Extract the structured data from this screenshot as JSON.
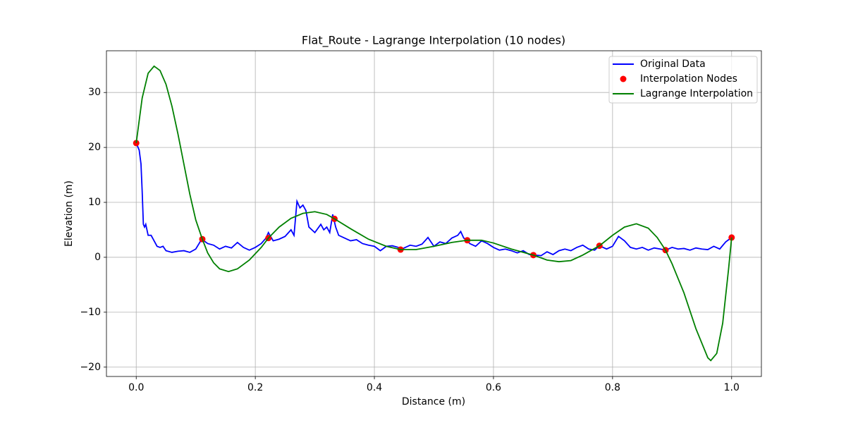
{
  "chart_data": {
    "type": "line",
    "title": "Flat_Route - Lagrange Interpolation (10 nodes)",
    "xlabel": "Distance (m)",
    "ylabel": "Elevation (m)",
    "xlim": [
      -0.05,
      1.05
    ],
    "ylim": [
      -21.7,
      37.6
    ],
    "xticks": [
      {
        "value": 0,
        "label": "0.0"
      },
      {
        "value": 0.2,
        "label": "0.2"
      },
      {
        "value": 0.4,
        "label": "0.4"
      },
      {
        "value": 0.6,
        "label": "0.6"
      },
      {
        "value": 0.8,
        "label": "0.8"
      },
      {
        "value": 1,
        "label": "1.0"
      }
    ],
    "yticks": [
      {
        "value": -20,
        "label": "−20"
      },
      {
        "value": -10,
        "label": "−10"
      },
      0,
      10,
      20,
      30
    ],
    "grid": true,
    "legend": "upper right",
    "series": [
      {
        "name": "Original Data",
        "type": "line",
        "color": "#0000ff",
        "x": [
          0,
          0.005,
          0.008,
          0.01,
          0.012,
          0.014,
          0.016,
          0.018,
          0.02,
          0.025,
          0.03,
          0.035,
          0.04,
          0.045,
          0.05,
          0.06,
          0.07,
          0.08,
          0.09,
          0.1,
          0.11,
          0.12,
          0.13,
          0.14,
          0.15,
          0.16,
          0.17,
          0.18,
          0.19,
          0.2,
          0.21,
          0.218,
          0.222,
          0.23,
          0.24,
          0.25,
          0.26,
          0.265,
          0.27,
          0.275,
          0.28,
          0.285,
          0.29,
          0.3,
          0.31,
          0.315,
          0.32,
          0.325,
          0.33,
          0.335,
          0.34,
          0.35,
          0.36,
          0.37,
          0.38,
          0.39,
          0.4,
          0.41,
          0.42,
          0.43,
          0.44,
          0.444,
          0.46,
          0.47,
          0.48,
          0.49,
          0.5,
          0.51,
          0.52,
          0.53,
          0.54,
          0.545,
          0.55,
          0.556,
          0.56,
          0.57,
          0.58,
          0.59,
          0.6,
          0.61,
          0.62,
          0.63,
          0.64,
          0.65,
          0.66,
          0.667,
          0.68,
          0.69,
          0.7,
          0.71,
          0.72,
          0.73,
          0.74,
          0.75,
          0.76,
          0.77,
          0.778,
          0.79,
          0.8,
          0.81,
          0.82,
          0.83,
          0.84,
          0.85,
          0.86,
          0.87,
          0.88,
          0.889,
          0.9,
          0.91,
          0.92,
          0.93,
          0.94,
          0.95,
          0.96,
          0.97,
          0.98,
          0.99,
          1.0
        ],
        "values": [
          20.8,
          19.5,
          17,
          12,
          6,
          5.5,
          6,
          5,
          4,
          4,
          3,
          2,
          1.8,
          2,
          1.2,
          0.9,
          1.1,
          1.2,
          0.9,
          1.5,
          3.3,
          2.5,
          2.2,
          1.5,
          2,
          1.7,
          2.7,
          1.8,
          1.3,
          1.8,
          2.5,
          3.5,
          4.5,
          3,
          3.3,
          3.8,
          5,
          4,
          10.2,
          9,
          9.5,
          8.5,
          5.5,
          4.5,
          6,
          5,
          5.5,
          4.5,
          7.8,
          5.5,
          4,
          3.5,
          3,
          3.2,
          2.5,
          2.2,
          2,
          1.2,
          2,
          2.1,
          1.8,
          1.4,
          2.2,
          2,
          2.4,
          3.6,
          2,
          2.8,
          2.5,
          3.5,
          4,
          4.7,
          3.5,
          3.1,
          2.5,
          2,
          3,
          2.5,
          1.8,
          1.3,
          1.5,
          1.2,
          0.8,
          1.2,
          0.5,
          0.4,
          0.3,
          1,
          0.5,
          1.2,
          1.5,
          1.2,
          1.8,
          2.2,
          1.5,
          1.3,
          2.1,
          1.5,
          2,
          3.8,
          3,
          1.8,
          1.5,
          1.8,
          1.3,
          1.7,
          1.5,
          1.3,
          1.8,
          1.5,
          1.6,
          1.3,
          1.7,
          1.5,
          1.4,
          2,
          1.5,
          2.8,
          3.6
        ]
      },
      {
        "name": "Interpolation Nodes",
        "type": "scatter",
        "color": "#ff0000",
        "x": [
          0,
          0.111,
          0.222,
          0.333,
          0.444,
          0.556,
          0.667,
          0.778,
          0.889,
          1.0
        ],
        "values": [
          20.8,
          3.3,
          3.5,
          7.0,
          1.4,
          3.1,
          0.4,
          2.1,
          1.3,
          3.6
        ]
      },
      {
        "name": "Lagrange Interpolation",
        "type": "line",
        "color": "#008000",
        "x": [
          0,
          0.01,
          0.02,
          0.03,
          0.04,
          0.05,
          0.06,
          0.07,
          0.08,
          0.09,
          0.1,
          0.111,
          0.12,
          0.13,
          0.14,
          0.155,
          0.17,
          0.19,
          0.21,
          0.222,
          0.24,
          0.26,
          0.28,
          0.3,
          0.32,
          0.333,
          0.36,
          0.39,
          0.42,
          0.444,
          0.47,
          0.5,
          0.53,
          0.556,
          0.58,
          0.6,
          0.63,
          0.667,
          0.69,
          0.71,
          0.73,
          0.75,
          0.778,
          0.8,
          0.82,
          0.84,
          0.86,
          0.875,
          0.889,
          0.9,
          0.92,
          0.94,
          0.96,
          0.965,
          0.975,
          0.985,
          0.995,
          1.0
        ],
        "values": [
          20.8,
          29,
          33.5,
          34.8,
          34,
          31.5,
          27.5,
          22.5,
          17,
          11.5,
          6.8,
          3.3,
          0.8,
          -1,
          -2.1,
          -2.6,
          -2.1,
          -0.5,
          1.8,
          3.5,
          5.5,
          7.1,
          8,
          8.3,
          7.8,
          7,
          5.2,
          3.3,
          2,
          1.4,
          1.4,
          2,
          2.7,
          3.1,
          3.1,
          2.6,
          1.5,
          0.4,
          -0.5,
          -0.8,
          -0.6,
          0.4,
          2.1,
          4,
          5.5,
          6.1,
          5.3,
          3.6,
          1.3,
          -1.2,
          -6.5,
          -13,
          -18.3,
          -18.8,
          -17.5,
          -12,
          -2,
          3.6
        ]
      }
    ]
  }
}
